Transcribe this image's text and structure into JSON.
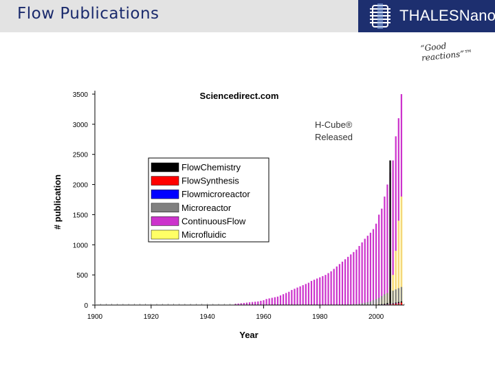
{
  "slide": {
    "title": "Flow Publications",
    "logo_text": "THALESNano",
    "tagline": "“Good reactions”™"
  },
  "chart_data": {
    "type": "bar",
    "title": "Sciencedirect.com",
    "annotation": [
      "H-Cube®",
      "Released"
    ],
    "xlabel": "Year",
    "ylabel": "# publication",
    "xlim": [
      1900,
      2010
    ],
    "ylim": [
      0,
      3500
    ],
    "xticks": [
      "1900",
      "1920",
      "1940",
      "1960",
      "1980",
      "2000"
    ],
    "yticks": [
      "0",
      "500",
      "1000",
      "1500",
      "2000",
      "2500",
      "3000",
      "3500"
    ],
    "legend_position": "center-left",
    "colors": {
      "FlowChemistry": "#000000",
      "FlowSynthesis": "#ff0000",
      "Flowmicroreactor": "#0000ff",
      "Microreactor": "#808080",
      "ContinuousFlow": "#cc33cc",
      "Microfluidic": "#ffff66"
    },
    "x": [
      1950,
      1951,
      1952,
      1953,
      1954,
      1955,
      1956,
      1957,
      1958,
      1959,
      1960,
      1961,
      1962,
      1963,
      1964,
      1965,
      1966,
      1967,
      1968,
      1969,
      1970,
      1971,
      1972,
      1973,
      1974,
      1975,
      1976,
      1977,
      1978,
      1979,
      1980,
      1981,
      1982,
      1983,
      1984,
      1985,
      1986,
      1987,
      1988,
      1989,
      1990,
      1991,
      1992,
      1993,
      1994,
      1995,
      1996,
      1997,
      1998,
      1999,
      2000,
      2001,
      2002,
      2003,
      2004,
      2005,
      2006,
      2007,
      2008,
      2009
    ],
    "series": [
      {
        "name": "FlowChemistry",
        "values": [
          0,
          0,
          0,
          0,
          0,
          0,
          0,
          0,
          0,
          0,
          0,
          0,
          0,
          0,
          0,
          0,
          0,
          0,
          0,
          0,
          0,
          0,
          0,
          0,
          0,
          0,
          0,
          0,
          0,
          0,
          0,
          0,
          0,
          0,
          0,
          0,
          0,
          0,
          0,
          0,
          0,
          0,
          0,
          0,
          0,
          0,
          0,
          0,
          0,
          0,
          5,
          10,
          15,
          20,
          35,
          2400,
          30,
          40,
          50,
          60
        ]
      },
      {
        "name": "FlowSynthesis",
        "values": [
          0,
          0,
          0,
          0,
          0,
          0,
          0,
          0,
          0,
          0,
          0,
          0,
          0,
          0,
          0,
          0,
          0,
          0,
          0,
          0,
          0,
          0,
          0,
          0,
          0,
          0,
          0,
          0,
          0,
          0,
          0,
          0,
          0,
          0,
          0,
          0,
          0,
          0,
          0,
          0,
          0,
          0,
          0,
          0,
          0,
          0,
          0,
          0,
          0,
          0,
          2,
          3,
          5,
          8,
          10,
          15,
          20,
          25,
          30,
          40
        ]
      },
      {
        "name": "Flowmicroreactor",
        "values": [
          0,
          0,
          0,
          0,
          0,
          0,
          0,
          0,
          0,
          0,
          0,
          0,
          0,
          0,
          0,
          0,
          0,
          0,
          0,
          0,
          0,
          0,
          0,
          0,
          0,
          0,
          0,
          0,
          0,
          0,
          0,
          0,
          0,
          0,
          0,
          0,
          0,
          0,
          0,
          0,
          0,
          0,
          0,
          0,
          0,
          0,
          0,
          0,
          0,
          0,
          3,
          5,
          8,
          10,
          15,
          20,
          25,
          30,
          35,
          40
        ]
      },
      {
        "name": "Microreactor",
        "values": [
          0,
          0,
          0,
          0,
          0,
          0,
          0,
          0,
          0,
          0,
          0,
          0,
          0,
          0,
          0,
          0,
          0,
          0,
          0,
          0,
          0,
          0,
          0,
          0,
          0,
          0,
          0,
          0,
          0,
          0,
          0,
          0,
          0,
          0,
          0,
          0,
          0,
          0,
          0,
          0,
          5,
          8,
          10,
          15,
          20,
          30,
          40,
          50,
          60,
          80,
          100,
          120,
          150,
          180,
          200,
          220,
          240,
          260,
          280,
          300
        ]
      },
      {
        "name": "ContinuousFlow",
        "values": [
          20,
          25,
          30,
          35,
          40,
          45,
          50,
          55,
          60,
          70,
          80,
          100,
          110,
          120,
          130,
          140,
          160,
          180,
          200,
          220,
          250,
          270,
          290,
          310,
          330,
          350,
          370,
          400,
          420,
          440,
          460,
          480,
          500,
          530,
          560,
          600,
          640,
          680,
          720,
          760,
          800,
          840,
          880,
          920,
          980,
          1040,
          1100,
          1150,
          1200,
          1260,
          1350,
          1500,
          1600,
          1800,
          2000,
          2200,
          2400,
          2800,
          3100,
          3500
        ]
      },
      {
        "name": "Microfluidic",
        "values": [
          0,
          0,
          0,
          0,
          0,
          0,
          0,
          0,
          0,
          0,
          0,
          0,
          0,
          0,
          0,
          0,
          0,
          0,
          0,
          0,
          0,
          0,
          0,
          0,
          0,
          0,
          0,
          0,
          0,
          0,
          0,
          0,
          0,
          0,
          0,
          0,
          0,
          0,
          0,
          0,
          0,
          0,
          0,
          0,
          0,
          0,
          0,
          0,
          0,
          5,
          20,
          50,
          100,
          150,
          200,
          300,
          500,
          900,
          1400,
          1800
        ]
      }
    ]
  }
}
